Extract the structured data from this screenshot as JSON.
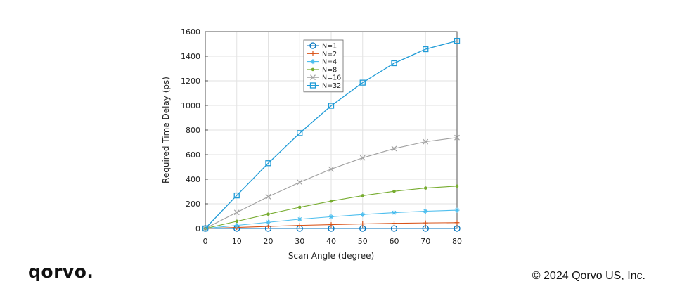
{
  "footer": {
    "logo_text": "qorvo.",
    "copyright": "© 2024 Qorvo US, Inc."
  },
  "chart_data": {
    "type": "line",
    "title": "",
    "xlabel": "Scan Angle (degree)",
    "ylabel": "Required Time Delay (ps)",
    "x": [
      0,
      10,
      20,
      30,
      40,
      50,
      60,
      70,
      80
    ],
    "xlim": [
      0,
      80
    ],
    "ylim": [
      0,
      1600
    ],
    "xticks": [
      0,
      10,
      20,
      30,
      40,
      50,
      60,
      70,
      80
    ],
    "yticks": [
      0,
      200,
      400,
      600,
      800,
      1000,
      1200,
      1400,
      1600
    ],
    "grid": true,
    "legend_position": "top-center",
    "series": [
      {
        "name": "N=1",
        "color": "#0072BD",
        "marker": "circle",
        "values": [
          0,
          0,
          0,
          0,
          0,
          0,
          0,
          0,
          0
        ]
      },
      {
        "name": "N=2",
        "color": "#D95319",
        "marker": "plus",
        "values": [
          0,
          8,
          17,
          25,
          31,
          37,
          42,
          45,
          47
        ]
      },
      {
        "name": "N=4",
        "color": "#4DBEEE",
        "marker": "asterisk",
        "values": [
          0,
          25,
          50,
          75,
          95,
          113,
          128,
          140,
          148
        ]
      },
      {
        "name": "N=8",
        "color": "#77AC30",
        "marker": "point",
        "values": [
          0,
          58,
          116,
          172,
          222,
          266,
          302,
          328,
          344
        ]
      },
      {
        "name": "N=16",
        "color": "#A0A0A0",
        "marker": "x",
        "values": [
          0,
          130,
          258,
          375,
          482,
          574,
          649,
          705,
          739
        ]
      },
      {
        "name": "N=32",
        "color": "#1F9BD7",
        "marker": "square",
        "values": [
          0,
          268,
          530,
          775,
          997,
          1185,
          1343,
          1457,
          1525
        ]
      }
    ]
  }
}
